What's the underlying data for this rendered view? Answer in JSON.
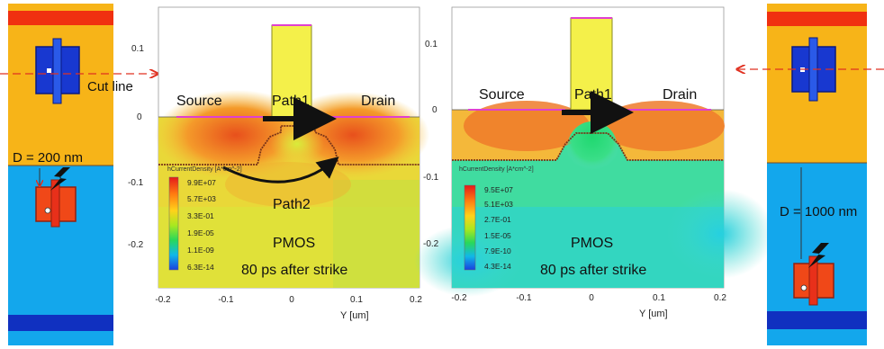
{
  "left_layout": {
    "cut_line_label": "Cut line",
    "distance_label": "D = 200 nm"
  },
  "right_layout": {
    "distance_label": "D = 1000 nm"
  },
  "left_plot": {
    "region_labels": {
      "source": "Source",
      "path1": "Path1",
      "drain": "Drain",
      "path2": "Path2"
    },
    "device_label": "PMOS",
    "time_label": "80 ps after strike",
    "legend_title": "hCurrentDensity [A*cm^-2]",
    "legend_values": [
      "9.9E+07",
      "5.7E+03",
      "3.3E-01",
      "1.9E-05",
      "1.1E-09",
      "6.3E-14"
    ],
    "x_ticks": [
      "-0.2",
      "-0.1",
      "0",
      "0.1",
      "0.2"
    ],
    "y_ticks": [
      "0.1",
      "0",
      "-0.1",
      "-0.2"
    ],
    "x_axis_label": "Y [um]"
  },
  "right_plot": {
    "region_labels": {
      "source": "Source",
      "path1": "Path1",
      "drain": "Drain"
    },
    "device_label": "PMOS",
    "time_label": "80 ps after strike",
    "legend_title": "hCurrentDensity [A*cm^-2]",
    "legend_values": [
      "9.5E+07",
      "5.1E+03",
      "2.7E-01",
      "1.5E-05",
      "7.9E-10",
      "4.3E-14"
    ],
    "x_ticks": [
      "-0.2",
      "-0.1",
      "0",
      "0.1",
      "0.2"
    ],
    "y_ticks": [
      "0.1",
      "0",
      "-0.1",
      "-0.2"
    ],
    "x_axis_label": "Y [um]"
  },
  "colors": {
    "n_well": "#f7b418",
    "p_substrate": "#13a7ec",
    "dark_blue": "#1030c0",
    "red_band": "#f03010",
    "gate": "#f4f04a",
    "cut_line": "#e03020"
  }
}
